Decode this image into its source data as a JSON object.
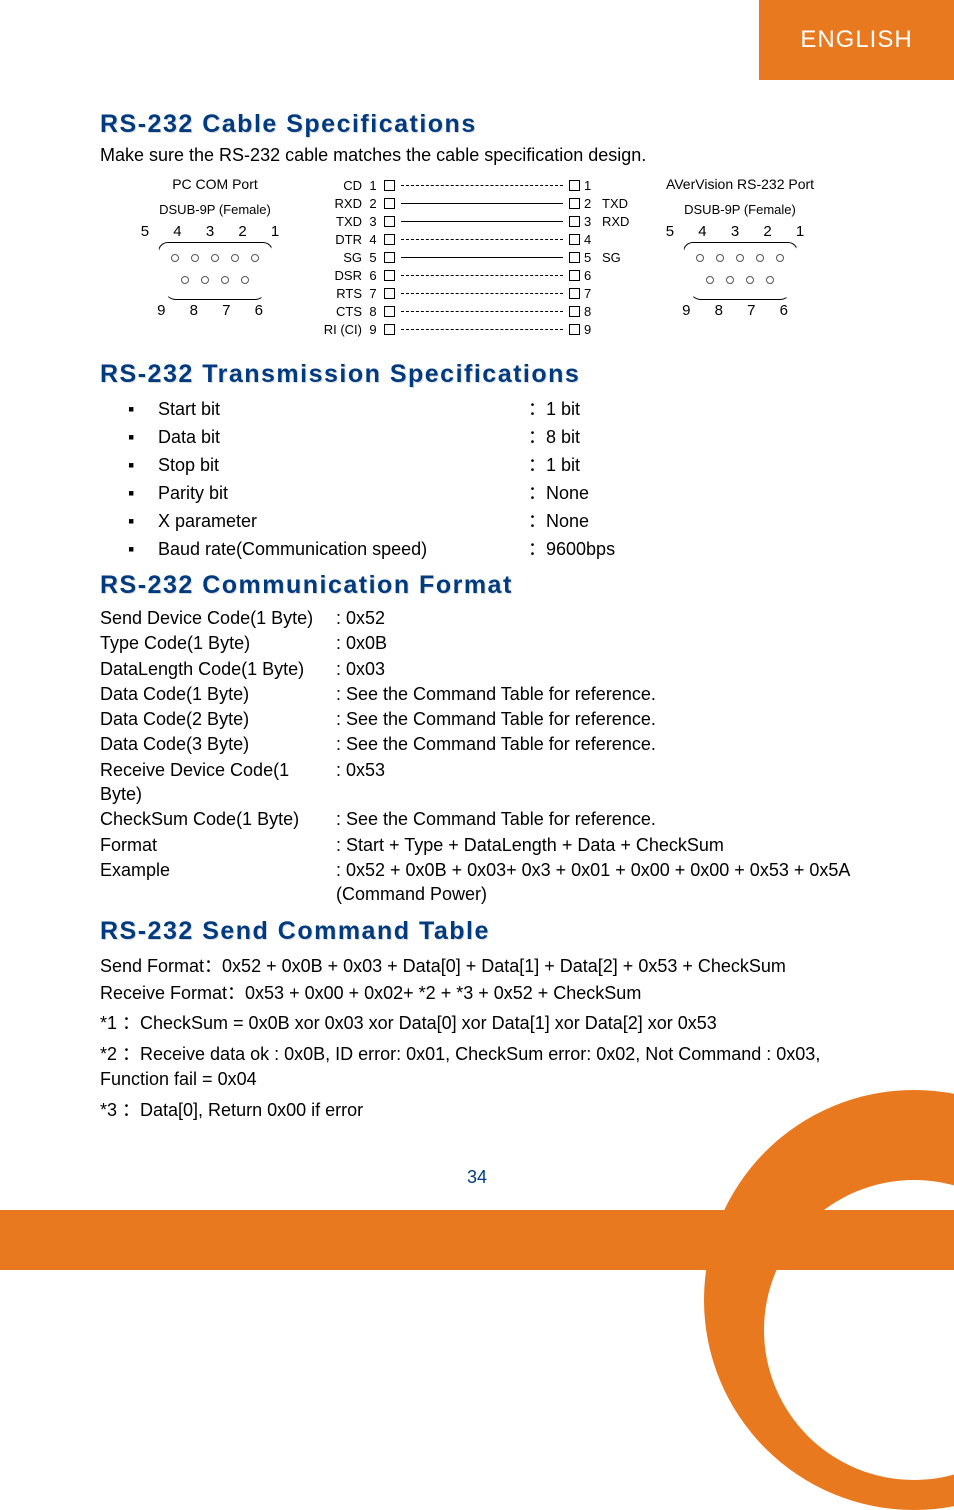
{
  "tab": {
    "label": "ENGLISH",
    "bg": "#e8791e",
    "fg": "#ffffff"
  },
  "page_number": "34",
  "brand_color": "#003a7f",
  "sec1": {
    "title": "RS-232 Cable Specifications",
    "intro": "Make sure the RS-232 cable matches the cable specification design."
  },
  "ports": {
    "left": {
      "title": "PC COM Port",
      "sub": "DSUB-9P (Female)",
      "top": "5  4  3  2  1",
      "bot": "9  8  7  6"
    },
    "right": {
      "title": "AVerVision RS-232 Port",
      "sub": "DSUB-9P (Female)",
      "top": "5  4  3  2  1",
      "bot": "9  8  7  6"
    }
  },
  "pins": [
    {
      "ll": "CD",
      "ln": "1",
      "style": "dashed",
      "rn": "1",
      "rl": ""
    },
    {
      "ll": "RXD",
      "ln": "2",
      "style": "solid",
      "rn": "2",
      "rl": "TXD"
    },
    {
      "ll": "TXD",
      "ln": "3",
      "style": "solid",
      "rn": "3",
      "rl": "RXD"
    },
    {
      "ll": "DTR",
      "ln": "4",
      "style": "dashed",
      "rn": "4",
      "rl": ""
    },
    {
      "ll": "SG",
      "ln": "5",
      "style": "solid",
      "rn": "5",
      "rl": "SG"
    },
    {
      "ll": "DSR",
      "ln": "6",
      "style": "dashed",
      "rn": "6",
      "rl": ""
    },
    {
      "ll": "RTS",
      "ln": "7",
      "style": "dashed",
      "rn": "7",
      "rl": ""
    },
    {
      "ll": "CTS",
      "ln": "8",
      "style": "dashed",
      "rn": "8",
      "rl": ""
    },
    {
      "ll": "RI (CI)",
      "ln": "9",
      "style": "dashed",
      "rn": "9",
      "rl": ""
    }
  ],
  "sec2": {
    "title": "RS-232 Transmission Specifications",
    "items": [
      {
        "k": "Start bit",
        "v": "1 bit"
      },
      {
        "k": "Data bit",
        "v": "8 bit"
      },
      {
        "k": "Stop bit",
        "v": "1 bit"
      },
      {
        "k": "Parity bit",
        "v": "None"
      },
      {
        "k": "X parameter",
        "v": "None"
      },
      {
        "k": "Baud rate(Communication speed)",
        "v": "9600bps"
      }
    ]
  },
  "sec3": {
    "title": "RS-232 Communication Format",
    "rows": [
      {
        "k": "Send Device Code(1 Byte)",
        "v": ": 0x52"
      },
      {
        "k": "Type Code(1 Byte)",
        "v": ": 0x0B"
      },
      {
        "k": "DataLength Code(1 Byte)",
        "v": ": 0x03"
      },
      {
        "k": "Data Code(1 Byte)",
        "v": ": See the Command Table for reference."
      },
      {
        "k": "Data Code(2 Byte)",
        "v": ": See the Command Table for reference."
      },
      {
        "k": "Data Code(3 Byte)",
        "v": ": See the Command Table for reference."
      },
      {
        "k": "Receive Device Code(1 Byte)",
        "v": ": 0x53"
      },
      {
        "k": "CheckSum Code(1 Byte)",
        "v": ": See the Command Table for reference."
      },
      {
        "k": "Format",
        "v": ": Start  + Type + DataLength + Data + CheckSum"
      },
      {
        "k": "Example",
        "v": ": 0x52 + 0x0B + 0x03+ 0x3 + 0x01 + 0x00 + 0x00 + 0x53 + 0x5A (Command Power)"
      }
    ]
  },
  "sec4": {
    "title": "RS-232 Send Command Table",
    "lines": [
      "Send Format：0x52 + 0x0B + 0x03 + Data[0] + Data[1] + Data[2] + 0x53 + CheckSum",
      "Receive Format：0x53 + 0x00 + 0x02+ *2 + *3 + 0x52 + CheckSum"
    ],
    "notes": [
      "*1 ：CheckSum = 0x0B xor 0x03 xor Data[0]  xor Data[1]  xor Data[2]  xor 0x53",
      "*2 ：Receive data ok : 0x0B, ID error: 0x01, CheckSum error: 0x02, Not Command : 0x03, Function fail = 0x04",
      "*3 ：Data[0], Return 0x00 if error"
    ]
  }
}
